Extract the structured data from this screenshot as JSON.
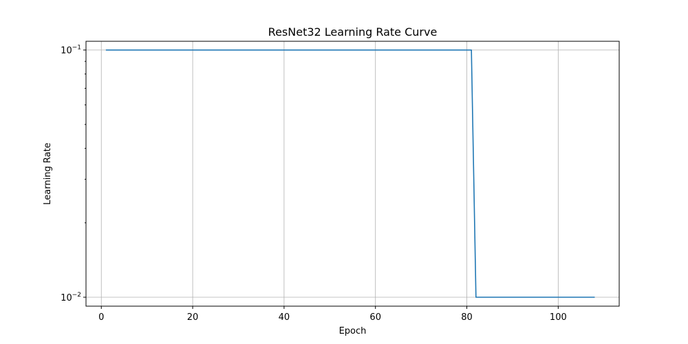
{
  "chart_data": {
    "type": "line",
    "title": "ResNet32 Learning Rate Curve",
    "xlabel": "Epoch",
    "ylabel": "Learning Rate",
    "xlim": [
      -3.35,
      113.35
    ],
    "ylim": [
      0.0092,
      0.1085
    ],
    "yscale": "log",
    "grid": true,
    "x_ticks": [
      0,
      20,
      40,
      60,
      80,
      100
    ],
    "y_ticks": [
      {
        "value": 0.1,
        "base": "10",
        "exp": "−1"
      },
      {
        "value": 0.01,
        "base": "10",
        "exp": "−2"
      }
    ],
    "series": [
      {
        "color": "#1f77b4",
        "x": [
          1,
          81,
          82,
          108
        ],
        "y": [
          0.1,
          0.1,
          0.01,
          0.01
        ]
      }
    ]
  }
}
